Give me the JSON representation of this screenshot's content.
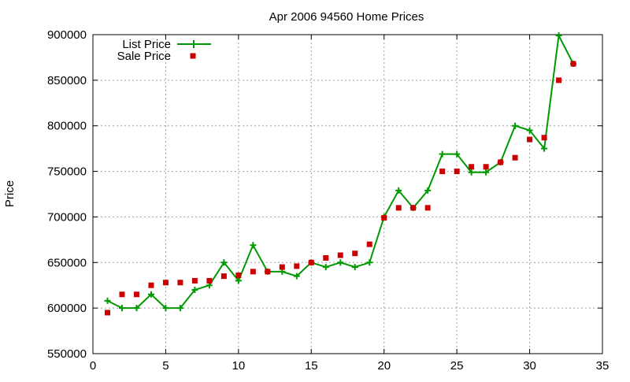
{
  "chart_data": {
    "type": "line",
    "title": "Apr 2006 94560 Home Prices",
    "xlabel": "",
    "ylabel": "Price",
    "xlim": [
      0,
      35
    ],
    "ylim": [
      550000,
      900000
    ],
    "x_ticks": [
      0,
      5,
      10,
      15,
      20,
      25,
      30,
      35
    ],
    "y_ticks": [
      550000,
      600000,
      650000,
      700000,
      750000,
      800000,
      850000,
      900000
    ],
    "grid": true,
    "legend_position": "top-left",
    "series": [
      {
        "name": "List Price",
        "style": "line-with-plus-markers",
        "color": "#009900",
        "x": [
          1,
          2,
          3,
          4,
          5,
          6,
          7,
          8,
          9,
          10,
          11,
          12,
          13,
          14,
          15,
          16,
          17,
          18,
          19,
          20,
          21,
          22,
          23,
          24,
          25,
          26,
          27,
          28,
          29,
          30,
          31,
          32,
          33
        ],
        "values": [
          608000,
          600000,
          600000,
          615000,
          600000,
          600000,
          620000,
          625000,
          650000,
          630000,
          669000,
          640000,
          640000,
          635000,
          650000,
          645000,
          650000,
          645000,
          650000,
          700000,
          729000,
          710000,
          729000,
          769000,
          769000,
          749000,
          749000,
          760000,
          800000,
          795000,
          775000,
          899000,
          868000
        ]
      },
      {
        "name": "Sale Price",
        "style": "square-markers",
        "color": "#cc0000",
        "x": [
          1,
          2,
          3,
          4,
          5,
          6,
          7,
          8,
          9,
          10,
          11,
          12,
          13,
          14,
          15,
          16,
          17,
          18,
          19,
          20,
          21,
          22,
          23,
          24,
          25,
          26,
          27,
          28,
          29,
          30,
          31,
          32,
          33
        ],
        "values": [
          595000,
          615000,
          615000,
          625000,
          628000,
          628000,
          630000,
          630000,
          635000,
          636000,
          640000,
          640000,
          645000,
          646000,
          650000,
          655000,
          658000,
          660000,
          670000,
          699000,
          710000,
          710000,
          710000,
          750000,
          750000,
          755000,
          755000,
          760000,
          765000,
          785000,
          787000,
          850000,
          868000
        ]
      }
    ]
  }
}
